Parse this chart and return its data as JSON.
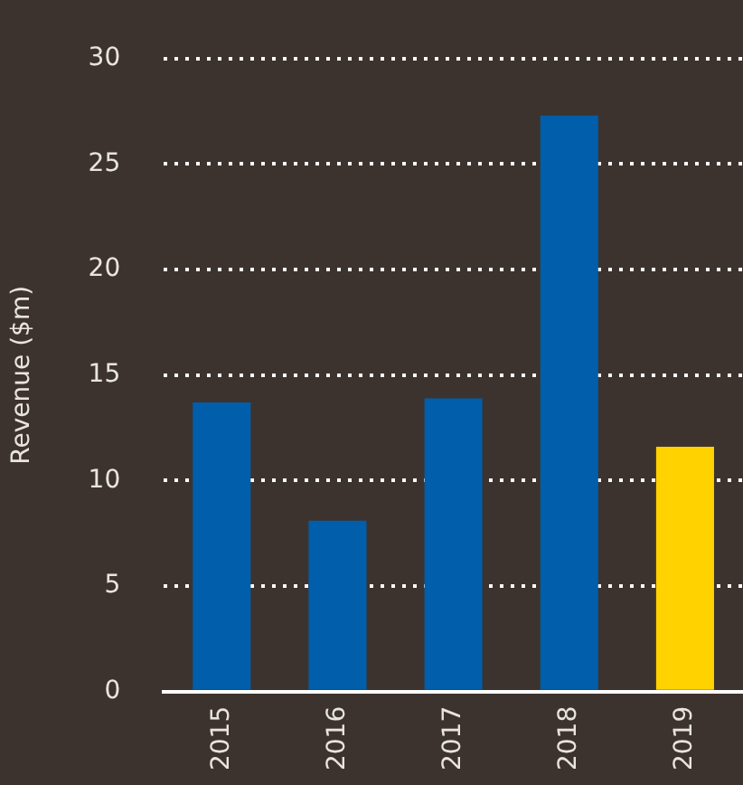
{
  "chart_data": {
    "type": "bar",
    "ylabel": "Revenue ($m)",
    "categories": [
      "2015",
      "2016",
      "2017",
      "2018",
      "2019"
    ],
    "values": [
      13.7,
      8.1,
      13.9,
      27.3,
      11.6
    ],
    "colors": [
      "#005eaa",
      "#005eaa",
      "#005eaa",
      "#005eaa",
      "#ffd200"
    ],
    "ylim": [
      0,
      30
    ],
    "yticks": [
      0,
      5,
      10,
      15,
      20,
      25,
      30
    ],
    "grid": "y"
  }
}
